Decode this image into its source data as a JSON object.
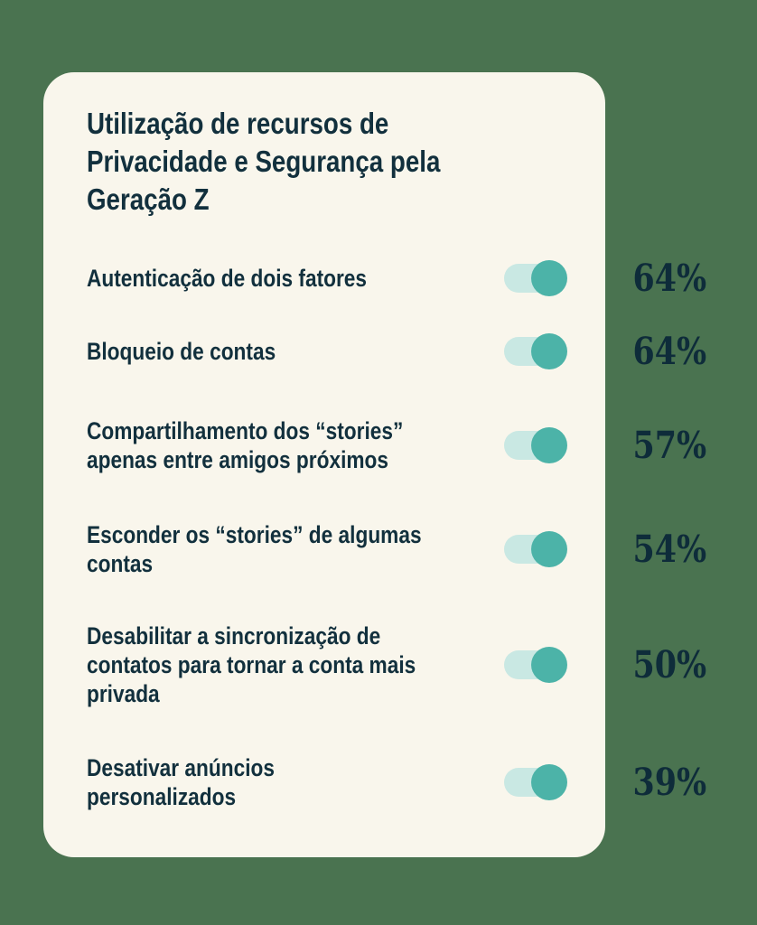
{
  "theme": {
    "background_color": "#4A7350",
    "card_color": "#F9F6EC",
    "text_color": "#12303D",
    "percent_color": "#0E2C3A",
    "toggle_track_color": "#C9E8E3",
    "toggle_knob_color": "#4CB3A8"
  },
  "card": {
    "title_lines": [
      "Utilização de recursos de",
      "Privacidade e Segurança pela",
      "Geração Z"
    ]
  },
  "rows": [
    {
      "label_lines": [
        "Autenticação de dois fatores"
      ],
      "value": "64%",
      "toggle_on": true
    },
    {
      "label_lines": [
        "Bloqueio de contas"
      ],
      "value": "64%",
      "toggle_on": true
    },
    {
      "label_lines": [
        "Compartilhamento dos “stories”",
        "apenas entre amigos próximos"
      ],
      "value": "57%",
      "toggle_on": true
    },
    {
      "label_lines": [
        "Esconder os “stories” de algumas",
        "contas"
      ],
      "value": "54%",
      "toggle_on": true
    },
    {
      "label_lines": [
        "Desabilitar a sincronização de",
        "contatos para tornar a conta mais",
        "privada"
      ],
      "value": "50%",
      "toggle_on": true
    },
    {
      "label_lines": [
        "Desativar anúncios",
        "personalizados"
      ],
      "value": "39%",
      "toggle_on": true
    }
  ],
  "chart_data": {
    "type": "table",
    "title": "Utilização de recursos de Privacidade e Segurança pela Geração Z",
    "categories": [
      "Autenticação de dois fatores",
      "Bloqueio de contas",
      "Compartilhamento dos “stories” apenas entre amigos próximos",
      "Esconder os “stories” de algumas contas",
      "Desabilitar a sincronização de contatos para tornar a conta mais privada",
      "Desativar anúncios personalizados"
    ],
    "values": [
      64,
      64,
      57,
      54,
      50,
      39
    ],
    "unit": "%",
    "value_range": [
      0,
      100
    ],
    "notes": "each category shown with an enabled toggle switch and its usage percentage"
  }
}
